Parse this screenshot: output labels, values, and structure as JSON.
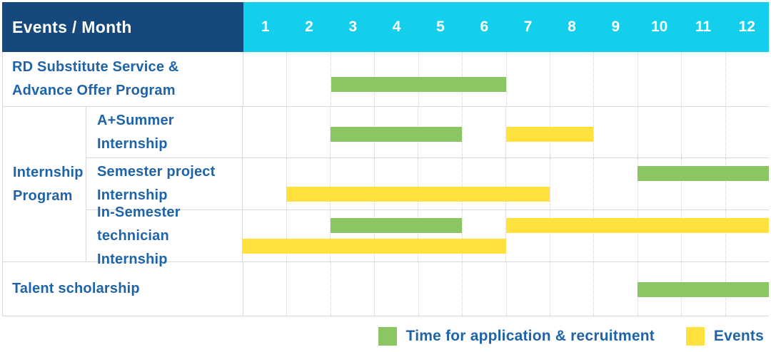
{
  "colors": {
    "header_navy": "#15497E",
    "header_cyan": "#14CFEC",
    "label_blue": "#1F63A8",
    "bar_green": "#8CC663",
    "bar_yellow": "#FFE23D",
    "grid_line": "#D9D9D9",
    "header_text": "#FFFFFF"
  },
  "header": {
    "corner_label": "Events / Month",
    "months": [
      "1",
      "2",
      "3",
      "4",
      "5",
      "6",
      "7",
      "8",
      "9",
      "10",
      "11",
      "12"
    ]
  },
  "legend": {
    "items": [
      {
        "label": "Time for application & recruitment",
        "color_key": "bar_green",
        "swatch": "green"
      },
      {
        "label": "Events",
        "color_key": "bar_yellow",
        "swatch": "yellow"
      }
    ]
  },
  "chart_data": {
    "type": "bar",
    "subtype": "gantt",
    "title": "Events / Month",
    "x_axis": {
      "label": "Month",
      "categories": [
        1,
        2,
        3,
        4,
        5,
        6,
        7,
        8,
        9,
        10,
        11,
        12
      ],
      "range": [
        1,
        12
      ]
    },
    "grid": true,
    "legend_position": "bottom-right",
    "series_names": [
      "Time for application & recruitment",
      "Events"
    ],
    "group_label": "Internship Program",
    "group_label_lines": [
      "Internship",
      "Program"
    ],
    "rows": [
      {
        "group": "",
        "label": "RD Substitute Service & Advance Offer Program",
        "label_lines": [
          "RD Substitute Service &",
          "Advance Offer Program"
        ],
        "bars": [
          {
            "series": "Time for application & recruitment",
            "color": "green",
            "start_month": 3,
            "end_month": 6,
            "line": 0
          }
        ]
      },
      {
        "group": "Internship Program",
        "label": "A+Summer Internship",
        "label_lines": [
          "A+Summer",
          "Internship"
        ],
        "bars": [
          {
            "series": "Time for application & recruitment",
            "color": "green",
            "start_month": 3,
            "end_month": 5,
            "line": 0
          },
          {
            "series": "Events",
            "color": "yellow",
            "start_month": 7,
            "end_month": 8,
            "line": 0
          }
        ]
      },
      {
        "group": "Internship Program",
        "label": "Semester project Internship",
        "label_lines": [
          "Semester project",
          "Internship"
        ],
        "bars": [
          {
            "series": "Time for application & recruitment",
            "color": "green",
            "start_month": 10,
            "end_month": 12,
            "line": 0
          },
          {
            "series": "Events",
            "color": "yellow",
            "start_month": 2,
            "end_month": 7,
            "line": 1
          }
        ]
      },
      {
        "group": "Internship Program",
        "label": "In-Semester technician Internship",
        "label_lines": [
          "In-Semester",
          "technician Internship"
        ],
        "bars": [
          {
            "series": "Time for application & recruitment",
            "color": "green",
            "start_month": 3,
            "end_month": 5,
            "line": 0
          },
          {
            "series": "Events",
            "color": "yellow",
            "start_month": 7,
            "end_month": 12,
            "line": 0
          },
          {
            "series": "Events",
            "color": "yellow",
            "start_month": 1,
            "end_month": 6,
            "line": 1
          }
        ]
      },
      {
        "group": "",
        "label": "Talent scholarship",
        "label_lines": [
          "Talent scholarship"
        ],
        "bars": [
          {
            "series": "Time for application & recruitment",
            "color": "green",
            "start_month": 10,
            "end_month": 12,
            "line": 0
          }
        ]
      }
    ]
  }
}
